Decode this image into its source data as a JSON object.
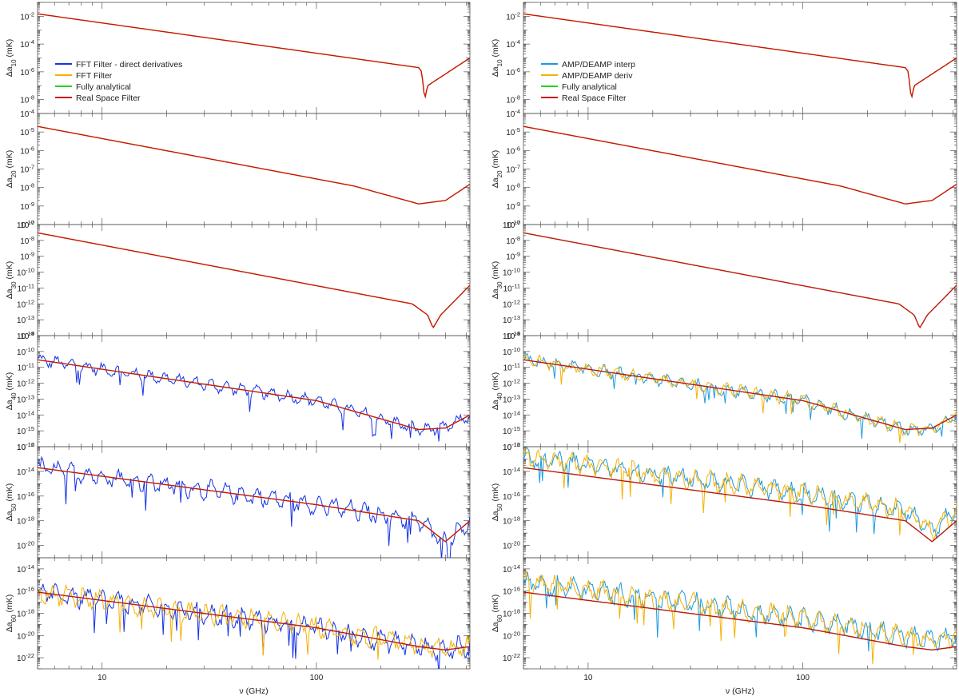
{
  "figure": {
    "colors": {
      "fft_direct": "#1432e6",
      "fft": "#f5b000",
      "analytical": "#22d422",
      "real_space": "#cc1010",
      "amp_interp": "#1a9ae0",
      "amp_deriv": "#f5b000"
    }
  },
  "chart_data": [
    {
      "type": "line",
      "side": "left",
      "xscale": "log",
      "xlim": [
        5,
        520
      ],
      "xlabel": "ν (GHz)",
      "xticks": [
        {
          "v": 10,
          "label": "10"
        },
        {
          "v": 100,
          "label": "100"
        }
      ],
      "legend": {
        "placement": "panel 1, left",
        "entries": [
          {
            "label": "FFT Filter - direct derivatives",
            "color_key": "fft_direct"
          },
          {
            "label": "FFT Filter",
            "color_key": "fft"
          },
          {
            "label": "Fully analytical",
            "color_key": "analytical"
          },
          {
            "label": "Real Space Filter",
            "color_key": "real_space"
          }
        ]
      },
      "panels": [
        {
          "ylabel": "Δa10 (mK)",
          "ylim_exp": [
            -9,
            -1
          ],
          "yticks_exp": [
            -8,
            -6,
            -4,
            -2
          ],
          "trend_points": [
            [
              5,
              0.015
            ],
            [
              300,
              2e-06
            ],
            [
              310,
              1e-06
            ],
            [
              320,
              1e-08
            ],
            [
              330,
              1e-07
            ],
            [
              520,
              1e-05
            ]
          ],
          "series": [
            {
              "name": "Fully analytical",
              "color_key": "analytical"
            },
            {
              "name": "FFT Filter",
              "color_key": "fft"
            },
            {
              "name": "Real Space Filter",
              "color_key": "real_space"
            }
          ]
        },
        {
          "ylabel": "Δa20 (mK)",
          "ylim_exp": [
            -10,
            -4
          ],
          "yticks_exp": [
            -10,
            -9,
            -8,
            -7,
            -6,
            -5,
            -4
          ],
          "trend_points": [
            [
              5,
              2e-05
            ],
            [
              150,
              1.2e-08
            ],
            [
              300,
              1.3e-09
            ],
            [
              400,
              2e-09
            ],
            [
              520,
              1.5e-08
            ]
          ],
          "series": [
            {
              "name": "Fully analytical",
              "color_key": "analytical"
            },
            {
              "name": "FFT Filter",
              "color_key": "fft"
            },
            {
              "name": "Real Space Filter",
              "color_key": "real_space"
            }
          ]
        },
        {
          "ylabel": "Δa30 (mK)",
          "ylim_exp": [
            -14,
            -7
          ],
          "yticks_exp": [
            -14,
            -13,
            -12,
            -11,
            -10,
            -9,
            -8,
            -7
          ],
          "trend_points": [
            [
              5,
              3e-08
            ],
            [
              280,
              1e-12
            ],
            [
              330,
              2e-13
            ],
            [
              350,
              3e-14
            ],
            [
              380,
              2e-13
            ],
            [
              520,
              1.5e-11
            ]
          ],
          "series": [
            {
              "name": "Fully analytical",
              "color_key": "analytical"
            },
            {
              "name": "FFT Filter",
              "color_key": "fft"
            },
            {
              "name": "Real Space Filter",
              "color_key": "real_space"
            }
          ]
        },
        {
          "ylabel": "Δa40 (mK)",
          "ylim_exp": [
            -16,
            -9
          ],
          "yticks_exp": [
            -16,
            -15,
            -14,
            -13,
            -12,
            -11,
            -10,
            -9
          ],
          "trend_points": [
            [
              5,
              3e-11
            ],
            [
              100,
              8e-14
            ],
            [
              300,
              1.2e-15
            ],
            [
              400,
              1.5e-15
            ],
            [
              520,
              1e-14
            ]
          ],
          "series": [
            {
              "name": "FFT Filter - direct derivatives",
              "color_key": "fft_direct"
            },
            {
              "name": "Fully analytical",
              "color_key": "analytical"
            },
            {
              "name": "FFT Filter",
              "color_key": "fft"
            },
            {
              "name": "Real Space Filter",
              "color_key": "real_space"
            }
          ]
        },
        {
          "ylabel": "Δa50 (mK)",
          "ylim_exp": [
            -21,
            -12
          ],
          "yticks_exp": [
            -20,
            -18,
            -16,
            -14,
            -12
          ],
          "trend_points": [
            [
              5,
              2e-14
            ],
            [
              100,
              2e-17
            ],
            [
              300,
              1e-18
            ],
            [
              400,
              2e-20
            ],
            [
              520,
              1e-18
            ]
          ],
          "series": [
            {
              "name": "FFT Filter - direct derivatives",
              "color_key": "fft_direct"
            },
            {
              "name": "Fully analytical",
              "color_key": "analytical"
            },
            {
              "name": "FFT Filter",
              "color_key": "fft"
            },
            {
              "name": "Real Space Filter",
              "color_key": "real_space"
            }
          ]
        },
        {
          "ylabel": "Δa60 (mK)",
          "ylim_exp": [
            -23,
            -13
          ],
          "yticks_exp": [
            -22,
            -20,
            -18,
            -16,
            -14
          ],
          "trend_points": [
            [
              5,
              8e-17
            ],
            [
              100,
              5e-20
            ],
            [
              300,
              1e-21
            ],
            [
              400,
              5e-22
            ],
            [
              520,
              1e-21
            ]
          ],
          "series": [
            {
              "name": "FFT Filter - direct derivatives",
              "color_key": "fft_direct"
            },
            {
              "name": "Fully analytical",
              "color_key": "analytical"
            },
            {
              "name": "FFT Filter",
              "color_key": "fft"
            },
            {
              "name": "Real Space Filter",
              "color_key": "real_space"
            }
          ]
        }
      ]
    },
    {
      "type": "line",
      "side": "right",
      "xscale": "log",
      "xlim": [
        5,
        520
      ],
      "xlabel": "ν (GHz)",
      "xticks": [
        {
          "v": 10,
          "label": "10"
        },
        {
          "v": 100,
          "label": "100"
        }
      ],
      "legend": {
        "placement": "panel 1, left",
        "entries": [
          {
            "label": "AMP/DEAMP interp",
            "color_key": "amp_interp"
          },
          {
            "label": "AMP/DEAMP deriv",
            "color_key": "amp_deriv"
          },
          {
            "label": "Fully analytical",
            "color_key": "analytical"
          },
          {
            "label": "Real Space Filter",
            "color_key": "real_space"
          }
        ]
      },
      "panels": [
        {
          "ylabel": "Δa10 (mK)",
          "ylim_exp": [
            -9,
            -1
          ],
          "yticks_exp": [
            -8,
            -6,
            -4,
            -2
          ],
          "trend_points": [
            [
              5,
              0.015
            ],
            [
              300,
              2e-06
            ],
            [
              310,
              1e-06
            ],
            [
              320,
              1e-08
            ],
            [
              330,
              1e-07
            ],
            [
              520,
              1e-05
            ]
          ],
          "series": [
            {
              "name": "Fully analytical",
              "color_key": "analytical"
            },
            {
              "name": "AMP/DEAMP deriv",
              "color_key": "amp_deriv"
            },
            {
              "name": "Real Space Filter",
              "color_key": "real_space"
            }
          ]
        },
        {
          "ylabel": "Δa20 (mK)",
          "ylim_exp": [
            -10,
            -4
          ],
          "yticks_exp": [
            -10,
            -9,
            -8,
            -7,
            -6,
            -5,
            -4
          ],
          "trend_points": [
            [
              5,
              2e-05
            ],
            [
              150,
              1.2e-08
            ],
            [
              300,
              1.3e-09
            ],
            [
              400,
              2e-09
            ],
            [
              520,
              1.5e-08
            ]
          ],
          "series": [
            {
              "name": "Fully analytical",
              "color_key": "analytical"
            },
            {
              "name": "AMP/DEAMP deriv",
              "color_key": "amp_deriv"
            },
            {
              "name": "Real Space Filter",
              "color_key": "real_space"
            }
          ]
        },
        {
          "ylabel": "Δa30 (mK)",
          "ylim_exp": [
            -14,
            -7
          ],
          "yticks_exp": [
            -14,
            -13,
            -12,
            -11,
            -10,
            -9,
            -8,
            -7
          ],
          "trend_points": [
            [
              5,
              3e-08
            ],
            [
              280,
              1e-12
            ],
            [
              330,
              2e-13
            ],
            [
              350,
              3e-14
            ],
            [
              380,
              2e-13
            ],
            [
              520,
              1.5e-11
            ]
          ],
          "series": [
            {
              "name": "AMP/DEAMP interp",
              "color_key": "amp_interp"
            },
            {
              "name": "Fully analytical",
              "color_key": "analytical"
            },
            {
              "name": "AMP/DEAMP deriv",
              "color_key": "amp_deriv"
            },
            {
              "name": "Real Space Filter",
              "color_key": "real_space"
            }
          ]
        },
        {
          "ylabel": "Δa40 (mK)",
          "ylim_exp": [
            -16,
            -9
          ],
          "yticks_exp": [
            -16,
            -15,
            -14,
            -13,
            -12,
            -11,
            -10,
            -9
          ],
          "trend_points": [
            [
              5,
              3e-11
            ],
            [
              100,
              8e-14
            ],
            [
              300,
              1.2e-15
            ],
            [
              400,
              1.5e-15
            ],
            [
              520,
              1e-14
            ]
          ],
          "series": [
            {
              "name": "AMP/DEAMP interp",
              "color_key": "amp_interp"
            },
            {
              "name": "AMP/DEAMP deriv",
              "color_key": "amp_deriv"
            },
            {
              "name": "Fully analytical",
              "color_key": "analytical"
            },
            {
              "name": "Real Space Filter",
              "color_key": "real_space"
            }
          ]
        },
        {
          "ylabel": "Δa50 (mK)",
          "ylim_exp": [
            -21,
            -12
          ],
          "yticks_exp": [
            -20,
            -18,
            -16,
            -14,
            -12
          ],
          "trend_points": [
            [
              5,
              2e-14
            ],
            [
              100,
              2e-17
            ],
            [
              300,
              1e-18
            ],
            [
              400,
              2e-20
            ],
            [
              520,
              1e-18
            ]
          ],
          "series": [
            {
              "name": "AMP/DEAMP interp",
              "color_key": "amp_interp"
            },
            {
              "name": "AMP/DEAMP deriv",
              "color_key": "amp_deriv"
            },
            {
              "name": "Fully analytical",
              "color_key": "analytical"
            },
            {
              "name": "Real Space Filter",
              "color_key": "real_space"
            }
          ]
        },
        {
          "ylabel": "Δa60 (mK)",
          "ylim_exp": [
            -23,
            -13
          ],
          "yticks_exp": [
            -22,
            -20,
            -18,
            -16,
            -14
          ],
          "trend_points": [
            [
              5,
              8e-17
            ],
            [
              100,
              5e-20
            ],
            [
              300,
              1e-21
            ],
            [
              400,
              5e-22
            ],
            [
              520,
              1e-21
            ]
          ],
          "series": [
            {
              "name": "AMP/DEAMP interp",
              "color_key": "amp_interp"
            },
            {
              "name": "AMP/DEAMP deriv",
              "color_key": "amp_deriv"
            },
            {
              "name": "Fully analytical",
              "color_key": "analytical"
            },
            {
              "name": "Real Space Filter",
              "color_key": "real_space"
            }
          ]
        }
      ]
    }
  ]
}
